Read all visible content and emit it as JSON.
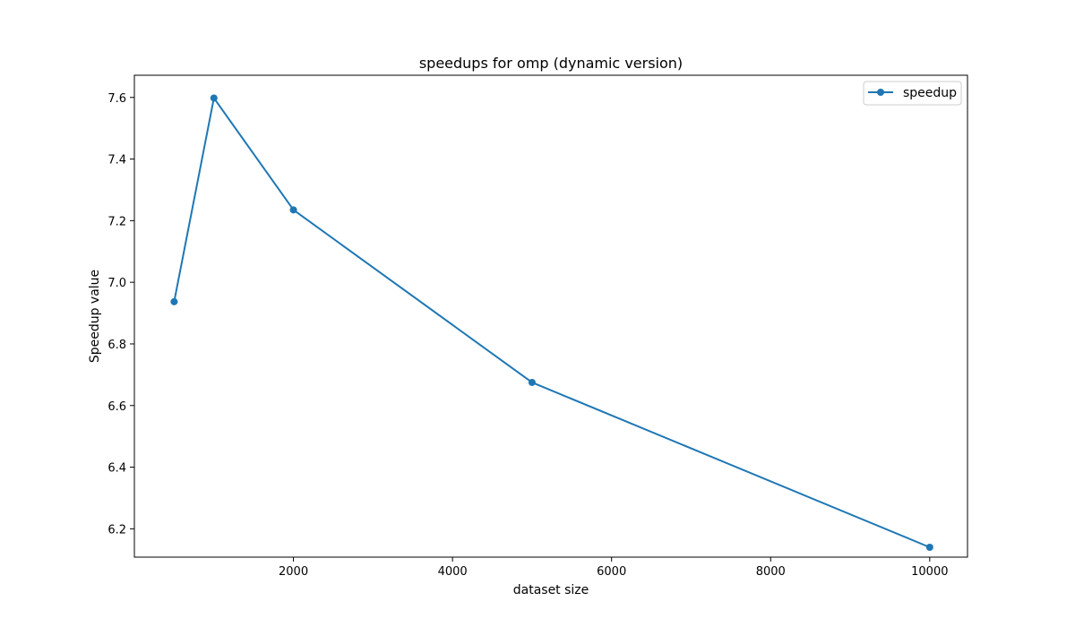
{
  "chart_data": {
    "type": "line",
    "title": "speedups for omp (dynamic version)",
    "xlabel": "dataset size",
    "ylabel": "Speedup value",
    "x": [
      500,
      1000,
      2000,
      5000,
      10000
    ],
    "series": [
      {
        "name": "speedup",
        "values": [
          6.937,
          7.598,
          7.235,
          6.675,
          6.14
        ],
        "color": "#1f77b4",
        "marker": "circle"
      }
    ],
    "xlim": [
      -0.0001,
      10475
    ],
    "ylim": [
      6.108,
      7.672
    ],
    "xticks": [
      2000,
      4000,
      6000,
      8000,
      10000
    ],
    "xtick_labels": [
      "2000",
      "4000",
      "6000",
      "8000",
      "10000"
    ],
    "yticks": [
      6.2,
      6.4,
      6.6,
      6.8,
      7.0,
      7.2,
      7.4,
      7.6
    ],
    "ytick_labels": [
      "6.2",
      "6.4",
      "6.6",
      "6.8",
      "7.0",
      "7.2",
      "7.4",
      "7.6"
    ],
    "grid": false,
    "legend_position": "top-right"
  }
}
